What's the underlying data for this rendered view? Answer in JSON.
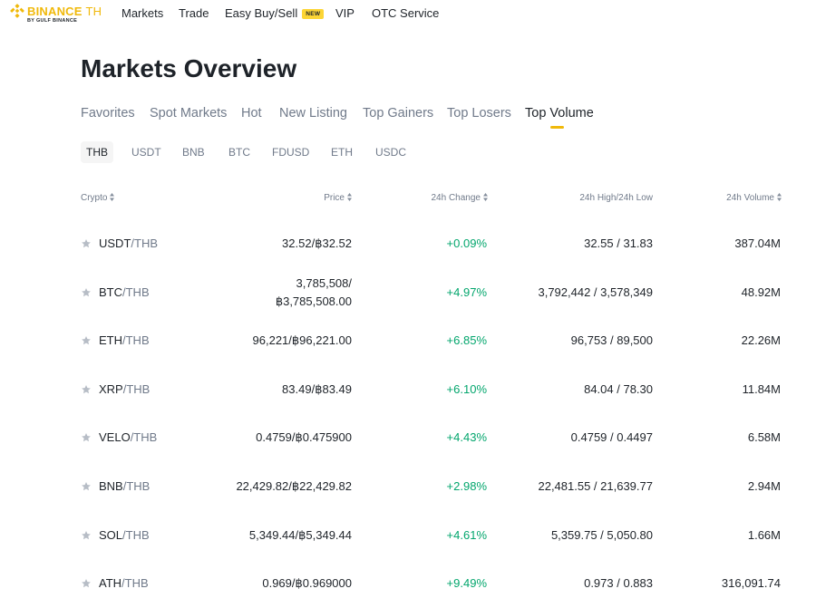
{
  "brand": {
    "name": "BINANCE",
    "region": "TH",
    "sub": "BY GULF BINANCE",
    "color": "#f0b90b"
  },
  "nav": {
    "items": [
      {
        "label": "Markets"
      },
      {
        "label": "Trade"
      },
      {
        "label": "Easy Buy/Sell",
        "badge": "NEW"
      },
      {
        "label": "VIP"
      },
      {
        "label": "OTC Service"
      }
    ]
  },
  "page": {
    "title": "Markets Overview"
  },
  "tabs": [
    {
      "label": "Favorites"
    },
    {
      "label": "Spot Markets"
    },
    {
      "label": "Hot"
    },
    {
      "label": "New Listing"
    },
    {
      "label": "Top Gainers"
    },
    {
      "label": "Top Losers"
    },
    {
      "label": "Top Volume",
      "active": true
    }
  ],
  "quote_tabs": [
    {
      "label": "THB",
      "active": true
    },
    {
      "label": "USDT"
    },
    {
      "label": "BNB"
    },
    {
      "label": "BTC"
    },
    {
      "label": "FDUSD"
    },
    {
      "label": "ETH"
    },
    {
      "label": "USDC"
    }
  ],
  "table": {
    "headers": {
      "crypto": "Crypto",
      "price": "Price",
      "change": "24h Change",
      "hilo": "24h High/24h Low",
      "volume": "24h Volume"
    },
    "rows": [
      {
        "base": "USDT",
        "quote": "/THB",
        "price": "32.52/฿32.52",
        "price2": "",
        "change": "+0.09%",
        "hilo": "32.55 / 31.83",
        "volume": "387.04M"
      },
      {
        "base": "BTC",
        "quote": "/THB",
        "price": "3,785,508/",
        "price2": "฿3,785,508.00",
        "change": "+4.97%",
        "hilo": "3,792,442 / 3,578,349",
        "volume": "48.92M"
      },
      {
        "base": "ETH",
        "quote": "/THB",
        "price": "96,221/฿96,221.00",
        "price2": "",
        "change": "+6.85%",
        "hilo": "96,753 / 89,500",
        "volume": "22.26M"
      },
      {
        "base": "XRP",
        "quote": "/THB",
        "price": "83.49/฿83.49",
        "price2": "",
        "change": "+6.10%",
        "hilo": "84.04 / 78.30",
        "volume": "11.84M"
      },
      {
        "base": "VELO",
        "quote": "/THB",
        "price": "0.4759/฿0.475900",
        "price2": "",
        "change": "+4.43%",
        "hilo": "0.4759 / 0.4497",
        "volume": "6.58M"
      },
      {
        "base": "BNB",
        "quote": "/THB",
        "price": "22,429.82/฿22,429.82",
        "price2": "",
        "change": "+2.98%",
        "hilo": "22,481.55 / 21,639.77",
        "volume": "2.94M"
      },
      {
        "base": "SOL",
        "quote": "/THB",
        "price": "5,349.44/฿5,349.44",
        "price2": "",
        "change": "+4.61%",
        "hilo": "5,359.75 / 5,050.80",
        "volume": "1.66M"
      },
      {
        "base": "ATH",
        "quote": "/THB",
        "price": "0.969/฿0.969000",
        "price2": "",
        "change": "+9.49%",
        "hilo": "0.973 / 0.883",
        "volume": "316,091.74"
      }
    ]
  },
  "colors": {
    "positive": "#03a66d",
    "accent": "#f0b90b",
    "muted": "#707a8a",
    "text": "#1e2329",
    "star": "#b7bdc6"
  },
  "icons": {
    "logo": "binance-logo-icon",
    "star": "star-icon",
    "sort": "sort-icon"
  }
}
